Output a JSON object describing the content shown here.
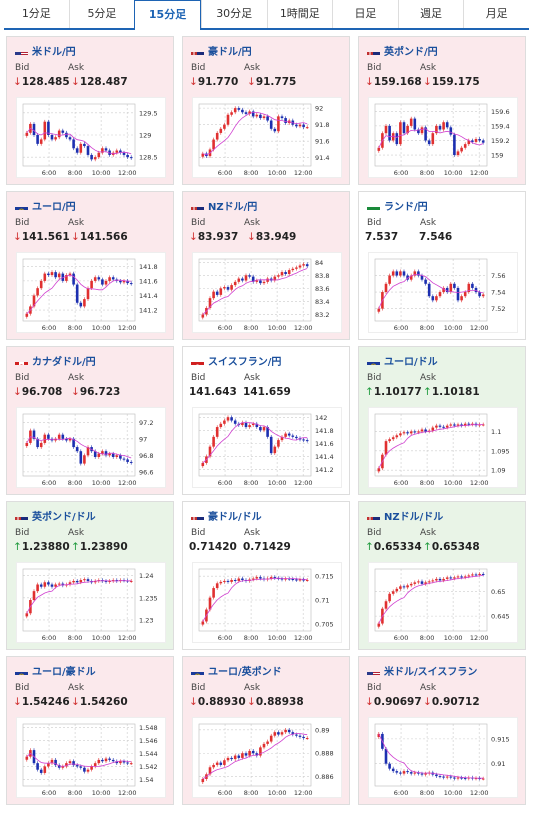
{
  "tabs": [
    {
      "label": "1分足",
      "active": false
    },
    {
      "label": "5分足",
      "active": false
    },
    {
      "label": "15分足",
      "active": true
    },
    {
      "label": "30分足",
      "active": false
    },
    {
      "label": "1時間足",
      "active": false
    },
    {
      "label": "日足",
      "active": false
    },
    {
      "label": "週足",
      "active": false
    },
    {
      "label": "月足",
      "active": false
    }
  ],
  "labels": {
    "bid": "Bid",
    "ask": "Ask"
  },
  "colors": {
    "down_bg": "#fbe9ec",
    "up_bg": "#e9f4e7",
    "bull": "#e03030",
    "bear": "#1c2fb0",
    "ma": "#d040d0",
    "pair": "#1a4f9c"
  },
  "x_ticks": [
    "6:00",
    "8:00",
    "10:00",
    "12:00"
  ],
  "cards": [
    {
      "pair": "米ドル/円",
      "flag": "us-flag",
      "trend": "down",
      "bid": "128.485",
      "ask": "128.487",
      "arrow_bid": "↓",
      "arrow_ask": "↓",
      "y_ticks": [
        "129.5",
        "129",
        "128.5"
      ],
      "ylim": [
        128.3,
        129.7
      ],
      "closes": [
        129.05,
        129.25,
        129.0,
        128.8,
        128.9,
        129.3,
        129.0,
        128.9,
        128.95,
        129.1,
        129.05,
        128.95,
        128.9,
        128.7,
        128.6,
        128.8,
        128.75,
        128.55,
        128.45,
        128.5,
        128.6,
        128.7,
        128.65,
        128.55,
        128.6,
        128.65,
        128.6,
        128.55,
        128.5,
        128.48
      ]
    },
    {
      "pair": "豪ドル/円",
      "flag": "au-flag",
      "trend": "down",
      "bid": "91.770",
      "ask": "91.775",
      "arrow_bid": "↓",
      "arrow_ask": "↓",
      "y_ticks": [
        "92",
        "91.8",
        "91.6",
        "91.4"
      ],
      "ylim": [
        91.3,
        92.05
      ],
      "closes": [
        91.45,
        91.42,
        91.5,
        91.62,
        91.7,
        91.75,
        91.8,
        91.92,
        91.95,
        92.0,
        91.98,
        91.95,
        91.93,
        91.96,
        91.9,
        91.92,
        91.88,
        91.9,
        91.85,
        91.75,
        91.72,
        91.9,
        91.88,
        91.82,
        91.85,
        91.8,
        91.78,
        91.8,
        91.77,
        91.77
      ]
    },
    {
      "pair": "英ポンド/円",
      "flag": "gb-flag",
      "trend": "down",
      "bid": "159.168",
      "ask": "159.175",
      "arrow_bid": "↓",
      "arrow_ask": "↓",
      "y_ticks": [
        "159.6",
        "159.4",
        "159.2",
        "159"
      ],
      "ylim": [
        158.85,
        159.7
      ],
      "closes": [
        159.1,
        159.3,
        159.4,
        159.2,
        159.3,
        159.15,
        159.45,
        159.3,
        159.4,
        159.5,
        159.35,
        159.3,
        159.38,
        159.2,
        159.15,
        159.3,
        159.4,
        159.35,
        159.45,
        159.38,
        159.28,
        159.0,
        159.05,
        159.1,
        159.15,
        159.2,
        159.18,
        159.22,
        159.2,
        159.17
      ]
    },
    {
      "pair": "ユーロ/円",
      "flag": "eu-flag",
      "trend": "down",
      "bid": "141.561",
      "ask": "141.566",
      "arrow_bid": "↓",
      "arrow_ask": "↓",
      "y_ticks": [
        "141.8",
        "141.6",
        "141.4",
        "141.2"
      ],
      "ylim": [
        141.05,
        141.9
      ],
      "closes": [
        141.15,
        141.25,
        141.4,
        141.5,
        141.6,
        141.7,
        141.68,
        141.72,
        141.65,
        141.7,
        141.6,
        141.68,
        141.7,
        141.55,
        141.3,
        141.25,
        141.35,
        141.5,
        141.6,
        141.65,
        141.62,
        141.55,
        141.6,
        141.65,
        141.62,
        141.6,
        141.58,
        141.6,
        141.57,
        141.56
      ]
    },
    {
      "pair": "NZドル/円",
      "flag": "nz-flag",
      "trend": "down",
      "bid": "83.937",
      "ask": "83.949",
      "arrow_bid": "↓",
      "arrow_ask": "↓",
      "y_ticks": [
        "84",
        "83.8",
        "83.6",
        "83.4",
        "83.2"
      ],
      "ylim": [
        83.1,
        84.05
      ],
      "closes": [
        83.2,
        83.3,
        83.45,
        83.55,
        83.5,
        83.6,
        83.62,
        83.58,
        83.65,
        83.7,
        83.75,
        83.72,
        83.8,
        83.78,
        83.7,
        83.72,
        83.68,
        83.7,
        83.75,
        83.72,
        83.78,
        83.8,
        83.85,
        83.82,
        83.88,
        83.9,
        83.92,
        83.95,
        83.97,
        83.94
      ]
    },
    {
      "pair": "ランド/円",
      "flag": "za-flag",
      "trend": "neutral",
      "bid": "7.537",
      "ask": "7.546",
      "arrow_bid": "",
      "arrow_ask": "",
      "y_ticks": [
        "7.56",
        "7.54",
        "7.52"
      ],
      "ylim": [
        7.505,
        7.58
      ],
      "closes": [
        7.52,
        7.54,
        7.55,
        7.56,
        7.565,
        7.56,
        7.565,
        7.56,
        7.555,
        7.56,
        7.565,
        7.56,
        7.555,
        7.55,
        7.535,
        7.53,
        7.535,
        7.54,
        7.545,
        7.54,
        7.55,
        7.545,
        7.53,
        7.535,
        7.54,
        7.55,
        7.545,
        7.54,
        7.535,
        7.537
      ]
    },
    {
      "pair": "カナダドル/円",
      "flag": "ca-flag",
      "trend": "down",
      "bid": "96.708",
      "ask": "96.723",
      "arrow_bid": "↓",
      "arrow_ask": "↓",
      "y_ticks": [
        "97.2",
        "97",
        "96.8",
        "96.6"
      ],
      "ylim": [
        96.55,
        97.3
      ],
      "closes": [
        96.95,
        97.1,
        97.0,
        96.9,
        96.95,
        97.05,
        97.0,
        96.98,
        97.0,
        97.05,
        97.0,
        96.98,
        97.0,
        96.9,
        96.85,
        96.7,
        96.8,
        96.9,
        96.85,
        96.78,
        96.82,
        96.85,
        96.8,
        96.82,
        96.78,
        96.8,
        96.76,
        96.75,
        96.72,
        96.71
      ]
    },
    {
      "pair": "スイスフラン/円",
      "flag": "ch-flag",
      "trend": "neutral",
      "bid": "141.643",
      "ask": "141.659",
      "arrow_bid": "",
      "arrow_ask": "",
      "y_ticks": [
        "142",
        "141.8",
        "141.6",
        "141.4",
        "141.2"
      ],
      "ylim": [
        141.1,
        142.05
      ],
      "closes": [
        141.3,
        141.4,
        141.55,
        141.7,
        141.85,
        141.9,
        141.95,
        142.0,
        141.95,
        141.9,
        141.88,
        141.92,
        141.85,
        141.88,
        141.9,
        141.85,
        141.8,
        141.85,
        141.7,
        141.45,
        141.55,
        141.65,
        141.7,
        141.75,
        141.72,
        141.7,
        141.68,
        141.66,
        141.65,
        141.64
      ]
    },
    {
      "pair": "ユーロ/ドル",
      "flag": "eu-us-flag",
      "trend": "up",
      "bid": "1.10177",
      "ask": "1.10181",
      "arrow_bid": "↑",
      "arrow_ask": "↑",
      "y_ticks": [
        "1.1",
        "1.095",
        "1.09"
      ],
      "ylim": [
        1.0885,
        1.1045
      ],
      "closes": [
        1.0905,
        1.094,
        1.0975,
        1.098,
        1.0985,
        1.099,
        1.0995,
        1.0998,
        1.0995,
        1.1,
        1.0998,
        1.1,
        1.1005,
        1.1,
        1.1002,
        1.101,
        1.1015,
        1.1012,
        1.101,
        1.1015,
        1.1018,
        1.1015,
        1.1018,
        1.1015,
        1.102,
        1.1018,
        1.102,
        1.1016,
        1.1018,
        1.1018
      ]
    },
    {
      "pair": "英ポンド/ドル",
      "flag": "gb-us-flag",
      "trend": "up",
      "bid": "1.23880",
      "ask": "1.23890",
      "arrow_bid": "↑",
      "arrow_ask": "↑",
      "y_ticks": [
        "1.24",
        "1.235",
        "1.23"
      ],
      "ylim": [
        1.2275,
        1.2415
      ],
      "closes": [
        1.2315,
        1.2345,
        1.2365,
        1.238,
        1.2375,
        1.2385,
        1.238,
        1.2375,
        1.238,
        1.2382,
        1.2378,
        1.238,
        1.2385,
        1.2388,
        1.2385,
        1.239,
        1.2392,
        1.2388,
        1.2385,
        1.2388,
        1.239,
        1.2388,
        1.2386,
        1.2388,
        1.239,
        1.2388,
        1.239,
        1.2389,
        1.2388,
        1.2388
      ]
    },
    {
      "pair": "豪ドル/ドル",
      "flag": "au-us-flag",
      "trend": "neutral",
      "bid": "0.71420",
      "ask": "0.71429",
      "arrow_bid": "",
      "arrow_ask": "",
      "y_ticks": [
        "0.715",
        "0.71",
        "0.705"
      ],
      "ylim": [
        0.7035,
        0.7165
      ],
      "closes": [
        0.7055,
        0.708,
        0.7105,
        0.7125,
        0.7135,
        0.7138,
        0.714,
        0.7138,
        0.7142,
        0.714,
        0.7145,
        0.7142,
        0.714,
        0.7143,
        0.7145,
        0.7148,
        0.7145,
        0.7143,
        0.7145,
        0.7148,
        0.7146,
        0.7145,
        0.7143,
        0.7145,
        0.7144,
        0.7143,
        0.7142,
        0.7143,
        0.7142,
        0.7142
      ]
    },
    {
      "pair": "NZドル/ドル",
      "flag": "nz-us-flag",
      "trend": "up",
      "bid": "0.65334",
      "ask": "0.65348",
      "arrow_bid": "↑",
      "arrow_ask": "↑",
      "y_ticks": [
        "0.65",
        "0.645"
      ],
      "ylim": [
        0.642,
        0.6545
      ],
      "closes": [
        0.6435,
        0.6465,
        0.648,
        0.6495,
        0.65,
        0.6505,
        0.651,
        0.6508,
        0.6512,
        0.6515,
        0.6518,
        0.652,
        0.6515,
        0.6518,
        0.652,
        0.6522,
        0.6525,
        0.6522,
        0.6525,
        0.6528,
        0.6526,
        0.6528,
        0.653,
        0.6528,
        0.653,
        0.6532,
        0.6534,
        0.6533,
        0.6535,
        0.6534
      ]
    },
    {
      "pair": "ユーロ/豪ドル",
      "flag": "eu-au-flag",
      "trend": "down",
      "bid": "1.54246",
      "ask": "1.54260",
      "arrow_bid": "↓",
      "arrow_ask": "↓",
      "y_ticks": [
        "1.548",
        "1.546",
        "1.544",
        "1.542",
        "1.54"
      ],
      "ylim": [
        1.539,
        1.5485
      ],
      "closes": [
        1.5435,
        1.5445,
        1.5425,
        1.5415,
        1.541,
        1.542,
        1.5425,
        1.543,
        1.5422,
        1.5418,
        1.542,
        1.5425,
        1.5428,
        1.5422,
        1.542,
        1.5418,
        1.5412,
        1.5415,
        1.542,
        1.5425,
        1.543,
        1.5428,
        1.5432,
        1.543,
        1.5428,
        1.5425,
        1.5428,
        1.5426,
        1.5425,
        1.5425
      ]
    },
    {
      "pair": "ユーロ/英ポンド",
      "flag": "eu-gb-flag",
      "trend": "down",
      "bid": "0.88930",
      "ask": "0.88938",
      "arrow_bid": "↓",
      "arrow_ask": "↓",
      "y_ticks": [
        "0.89",
        "0.888",
        "0.886"
      ],
      "ylim": [
        0.8852,
        0.8905
      ],
      "closes": [
        0.8858,
        0.8862,
        0.8868,
        0.887,
        0.8872,
        0.887,
        0.8874,
        0.8876,
        0.8875,
        0.8878,
        0.8876,
        0.888,
        0.8878,
        0.8882,
        0.888,
        0.8878,
        0.8885,
        0.8888,
        0.889,
        0.8895,
        0.8898,
        0.8896,
        0.8898,
        0.89,
        0.8898,
        0.8896,
        0.8895,
        0.8894,
        0.8893,
        0.8893
      ]
    },
    {
      "pair": "米ドル/スイスフラン",
      "flag": "us-ch-flag",
      "trend": "down",
      "bid": "0.90697",
      "ask": "0.90712",
      "arrow_bid": "↓",
      "arrow_ask": "↓",
      "y_ticks": [
        "0.915",
        "0.91"
      ],
      "ylim": [
        0.9055,
        0.918
      ],
      "closes": [
        0.916,
        0.913,
        0.91,
        0.909,
        0.9085,
        0.9082,
        0.908,
        0.9085,
        0.9083,
        0.908,
        0.9082,
        0.908,
        0.9078,
        0.908,
        0.9082,
        0.9078,
        0.9075,
        0.9074,
        0.9072,
        0.9074,
        0.9072,
        0.907,
        0.9072,
        0.9071,
        0.907,
        0.9072,
        0.907,
        0.9071,
        0.907,
        0.907
      ]
    }
  ]
}
